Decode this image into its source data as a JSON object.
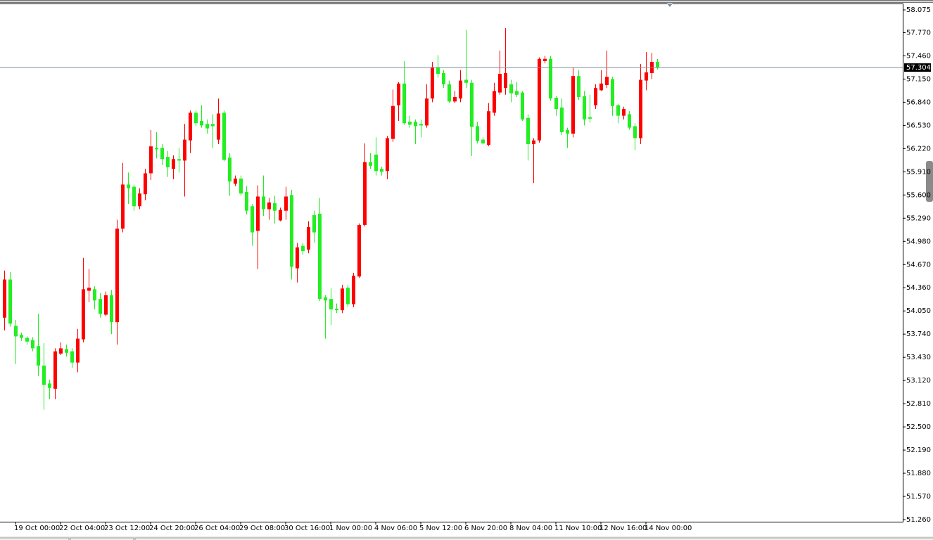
{
  "chart_data": {
    "type": "candlestick",
    "up_color": "#ff0000",
    "down_color": "#22ee22",
    "price_line": 57.304,
    "price_line_color": "#7f8fa0",
    "ylim": [
      51.232,
      58.16
    ],
    "yticks": [
      58.075,
      {
        "value": 57.77,
        "label": "57.770"
      },
      {
        "value": 57.46,
        "label": "57.460"
      },
      {
        "value": 57.15,
        "label": "57.150"
      },
      {
        "value": 56.84,
        "label": "56.840"
      },
      {
        "value": 56.53,
        "label": "56.530"
      },
      {
        "value": 56.22,
        "label": "56.220"
      },
      {
        "value": 55.91,
        "label": "55.910"
      },
      {
        "value": 55.6,
        "label": "55.600"
      },
      {
        "value": 55.29,
        "label": "55.290"
      },
      {
        "value": 54.98,
        "label": "54.980"
      },
      {
        "value": 54.67,
        "label": "54.670"
      },
      {
        "value": 54.36,
        "label": "54.360"
      },
      {
        "value": 54.05,
        "label": "54.050"
      },
      {
        "value": 53.74,
        "label": "53.740"
      },
      {
        "value": 53.43,
        "label": "53.430"
      },
      {
        "value": 53.12,
        "label": "53.120"
      },
      {
        "value": 52.81,
        "label": "52.810"
      },
      {
        "value": 52.5,
        "label": "52.500"
      },
      {
        "value": 52.19,
        "label": "52.190"
      },
      {
        "value": 51.88,
        "label": "51.880"
      },
      {
        "value": 51.57,
        "label": "51.570"
      },
      {
        "value": 51.26,
        "label": "51.260"
      }
    ],
    "categories": [
      null,
      null,
      "19 Oct 00:00",
      null,
      null,
      null,
      null,
      null,
      null,
      null,
      "22 Oct 04:00",
      null,
      null,
      null,
      null,
      null,
      null,
      null,
      "23 Oct 12:00",
      null,
      null,
      null,
      null,
      null,
      null,
      null,
      "24 Oct 20:00",
      null,
      null,
      null,
      null,
      null,
      null,
      null,
      "26 Oct 04:00",
      null,
      null,
      null,
      null,
      null,
      null,
      null,
      "29 Oct 08:00",
      null,
      null,
      null,
      null,
      null,
      null,
      null,
      "30 Oct 16:00",
      null,
      null,
      null,
      null,
      null,
      null,
      null,
      "1 Nov 00:00",
      null,
      null,
      null,
      null,
      null,
      null,
      null,
      "4 Nov 06:00",
      null,
      null,
      null,
      null,
      null,
      null,
      null,
      "5 Nov 12:00",
      null,
      null,
      null,
      null,
      null,
      null,
      null,
      "6 Nov 20:00",
      null,
      null,
      null,
      null,
      null,
      null,
      null,
      "8 Nov 04:00",
      null,
      null,
      null,
      null,
      null,
      null,
      null,
      "11 Nov 10:00",
      null,
      null,
      null,
      null,
      null,
      null,
      null,
      "12 Nov 16:00",
      null,
      null,
      null,
      null,
      null,
      null,
      null,
      "14 Nov 00:00",
      null,
      null
    ],
    "open": [
      53.96,
      54.47,
      53.85,
      53.73,
      53.69,
      53.66,
      53.58,
      53.32,
      53.08,
      53.01,
      53.48,
      53.54,
      53.51,
      53.36,
      53.67,
      54.32,
      54.34,
      54.21,
      54.0,
      54.26,
      53.9,
      55.15,
      55.74,
      55.71,
      55.45,
      55.61,
      55.89,
      56.23,
      56.23,
      56.11,
      55.95,
      56.08,
      56.06,
      56.33,
      56.7,
      56.59,
      56.55,
      56.55,
      56.34,
      56.7,
      56.1,
      55.75,
      55.82,
      55.64,
      55.45,
      55.12,
      55.58,
      55.41,
      55.49,
      55.26,
      55.39,
      55.6,
      54.62,
      54.92,
      54.87,
      55.33,
      55.35,
      54.23,
      54.21,
      54.08,
      54.06,
      54.36,
      54.14,
      54.51,
      55.2,
      56.04,
      56.14,
      55.95,
      55.92,
      56.35,
      56.8,
      57.09,
      56.58,
      56.58,
      56.55,
      56.53,
      56.89,
      57.3,
      57.23,
      57.08,
      56.85,
      56.89,
      57.14,
      57.1,
      56.52,
      56.34,
      56.27,
      56.7,
      56.97,
      57.03,
      57.08,
      56.99,
      56.97,
      56.63,
      56.28,
      56.33,
      57.39,
      57.42,
      56.9,
      56.77,
      56.47,
      56.42,
      57.19,
      56.92,
      56.64,
      56.8,
      57.0,
      57.07,
      57.15,
      56.8,
      56.66,
      56.68,
      56.52,
      56.36,
      57.13,
      57.23,
      57.38
    ],
    "high": [
      54.59,
      54.57,
      53.93,
      53.76,
      53.71,
      53.7,
      54.01,
      53.62,
      53.13,
      53.55,
      53.63,
      53.6,
      53.55,
      53.81,
      54.76,
      54.61,
      54.38,
      54.29,
      54.31,
      54.33,
      55.27,
      56.03,
      55.9,
      55.74,
      55.69,
      55.95,
      56.47,
      56.44,
      56.28,
      56.19,
      56.13,
      56.23,
      56.55,
      56.73,
      56.73,
      56.8,
      56.61,
      56.68,
      56.89,
      56.73,
      56.16,
      55.86,
      55.86,
      55.72,
      55.48,
      55.73,
      55.86,
      55.56,
      55.59,
      55.43,
      55.71,
      55.67,
      54.96,
      54.96,
      55.25,
      55.39,
      55.56,
      54.26,
      54.35,
      54.15,
      54.4,
      54.4,
      54.56,
      55.22,
      56.29,
      56.16,
      56.37,
      55.98,
      56.39,
      57.01,
      57.11,
      57.39,
      56.66,
      56.61,
      56.61,
      57.08,
      57.38,
      57.47,
      57.27,
      57.13,
      56.99,
      57.27,
      57.81,
      57.14,
      56.58,
      56.37,
      56.83,
      57.1,
      57.53,
      57.83,
      57.14,
      57.11,
      56.99,
      56.68,
      56.36,
      57.44,
      57.46,
      57.46,
      56.92,
      56.89,
      56.5,
      57.3,
      57.27,
      56.99,
      56.94,
      57.08,
      57.27,
      57.53,
      57.18,
      56.82,
      56.78,
      56.72,
      56.56,
      57.35,
      57.51,
      57.5,
      57.42
    ],
    "low": [
      53.79,
      53.84,
      53.34,
      53.65,
      53.6,
      53.51,
      53.18,
      52.73,
      52.87,
      52.87,
      53.46,
      53.44,
      53.29,
      53.23,
      53.63,
      54.17,
      54.07,
      53.96,
      53.98,
      53.74,
      53.6,
      55.1,
      55.48,
      55.39,
      55.41,
      55.53,
      55.8,
      56.09,
      56.0,
      55.84,
      55.81,
      55.9,
      55.58,
      56.16,
      56.52,
      56.5,
      56.42,
      56.23,
      56.28,
      56.05,
      55.59,
      55.72,
      55.59,
      55.34,
      54.92,
      54.61,
      55.32,
      55.27,
      55.22,
      55.25,
      55.27,
      54.47,
      54.43,
      54.8,
      54.82,
      54.96,
      54.18,
      53.68,
      53.86,
      54.02,
      54.02,
      54.1,
      54.1,
      54.49,
      55.18,
      55.95,
      55.86,
      55.86,
      55.81,
      56.31,
      56.59,
      56.54,
      56.5,
      56.28,
      56.37,
      56.5,
      56.84,
      57.17,
      57.03,
      56.83,
      56.83,
      56.84,
      57.03,
      56.12,
      56.29,
      56.28,
      56.25,
      56.66,
      56.94,
      56.94,
      56.84,
      56.91,
      56.59,
      56.06,
      55.76,
      56.3,
      57.36,
      56.86,
      56.66,
      56.4,
      56.23,
      56.37,
      56.87,
      56.53,
      56.57,
      56.75,
      56.99,
      57.03,
      56.66,
      56.56,
      56.61,
      56.47,
      56.2,
      56.28,
      57.0,
      57.15,
      57.28
    ],
    "close": [
      54.47,
      53.88,
      53.71,
      53.69,
      53.64,
      53.55,
      53.32,
      53.06,
      53.02,
      53.51,
      53.55,
      53.49,
      53.36,
      53.68,
      54.34,
      54.36,
      54.19,
      54.01,
      54.26,
      53.9,
      55.15,
      55.74,
      55.69,
      55.45,
      55.62,
      55.89,
      56.25,
      56.21,
      56.08,
      55.97,
      56.08,
      56.06,
      56.34,
      56.7,
      56.56,
      56.53,
      56.49,
      56.52,
      56.69,
      56.07,
      55.78,
      55.82,
      55.62,
      55.39,
      55.1,
      55.58,
      55.41,
      55.5,
      55.39,
      55.4,
      55.58,
      54.64,
      54.9,
      54.85,
      55.17,
      55.1,
      54.21,
      54.19,
      54.07,
      54.06,
      54.35,
      54.14,
      54.52,
      55.2,
      56.04,
      55.99,
      55.92,
      55.91,
      56.36,
      56.79,
      57.09,
      56.56,
      56.54,
      56.52,
      56.53,
      56.89,
      57.31,
      57.22,
      57.08,
      56.85,
      56.91,
      57.13,
      57.1,
      56.51,
      56.32,
      56.29,
      56.72,
      56.99,
      57.22,
      57.23,
      56.96,
      56.94,
      56.61,
      56.28,
      56.33,
      57.42,
      57.42,
      56.89,
      56.75,
      56.44,
      56.42,
      57.19,
      56.91,
      56.61,
      56.62,
      57.03,
      57.09,
      57.18,
      56.79,
      56.66,
      56.75,
      56.5,
      56.36,
      57.14,
      57.24,
      57.38,
      57.3
    ]
  }
}
